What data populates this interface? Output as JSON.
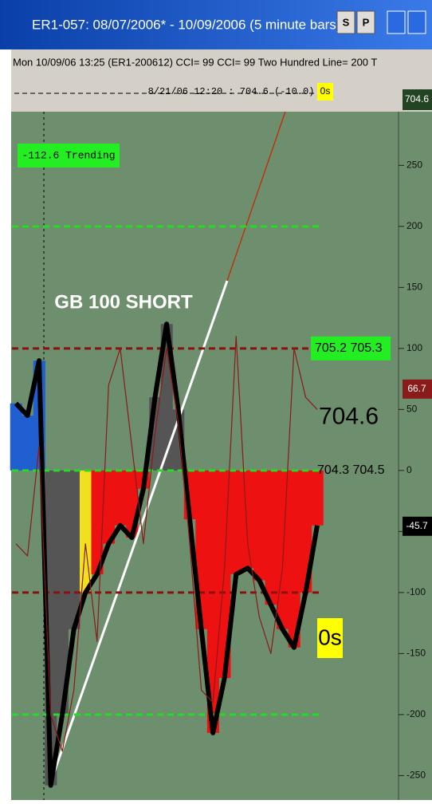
{
  "window": {
    "title": "ER1-057:  08/07/2006* - 10/09/2006  (5 minute bars)",
    "buttons": [
      "S",
      "P"
    ]
  },
  "info_line": "Mon 10/09/06 13:25 (ER1-200612)  CCI= 99  CCI= 99  Two Hundred Line= 200  T",
  "top_marker": {
    "text": "8/21/06 12:20 : 704.6 (-10.0)",
    "badge": "0s",
    "price": "704.6"
  },
  "chart_data": {
    "type": "bar",
    "annotations": {
      "status": "-112.6  Trending",
      "signal": "GB 100 SHORT",
      "badge": "0s"
    },
    "price_labels": [
      "705.2  705.3",
      "704.6",
      "704.3  704.5"
    ],
    "categories": [
      null,
      null,
      null,
      null,
      null,
      null,
      null,
      null,
      null,
      null,
      null,
      null,
      null,
      null,
      null,
      null,
      null,
      null,
      null,
      null,
      null,
      null,
      null,
      null,
      null,
      null,
      null
    ],
    "series": [
      {
        "color": "#000000",
        "values": [
          55,
          45,
          90,
          -258,
          -200,
          -130,
          -100,
          -85,
          -60,
          -45,
          -55,
          -15,
          60,
          120,
          50,
          -40,
          -130,
          -215,
          -170,
          -85,
          -80,
          -90,
          -110,
          -130,
          -145,
          -100,
          -45
        ],
        "colors": [
          "#1f5fd0",
          "#1f5fd0",
          "#1f5fd0",
          "#555555",
          "#555555",
          "#555555",
          "#f0e020",
          "#ee1111",
          "#ee1111",
          "#ee1111",
          "#ee1111",
          "#ee1111",
          "#555555",
          "#555555",
          "#555555",
          "#ee1111",
          "#ee1111",
          "#ee1111",
          "#ee1111",
          "#ee1111",
          "#ee1111",
          "#ee1111",
          "#ee1111",
          "#ee1111",
          "#ee1111",
          "#ee1111",
          "#ee1111"
        ]
      },
      {
        "color": "#8b1a1a",
        "values": [
          -60,
          -70,
          20,
          -200,
          -230,
          -180,
          -60,
          -140,
          70,
          100,
          20,
          -60,
          30,
          100,
          40,
          -60,
          -180,
          -190,
          -80,
          110,
          -60,
          -120,
          -150,
          -80,
          100,
          60,
          50
        ]
      }
    ],
    "levels": [
      {
        "value": 200,
        "color": "#22dd22"
      },
      {
        "value": 100,
        "color": "#8b1010"
      },
      {
        "value": 0,
        "color": "#22dd22"
      },
      {
        "value": -100,
        "color": "#8b1010"
      },
      {
        "value": -200,
        "color": "#22dd22"
      }
    ],
    "value_tags": [
      {
        "value": 66.7,
        "color": "#8b1a1a"
      },
      {
        "value": -45.7,
        "color": "#000000"
      }
    ],
    "ylim": [
      -270,
      294
    ],
    "yticks": [
      250,
      200,
      150,
      100,
      50,
      0,
      -50,
      -100,
      -150,
      -200,
      -250
    ]
  }
}
